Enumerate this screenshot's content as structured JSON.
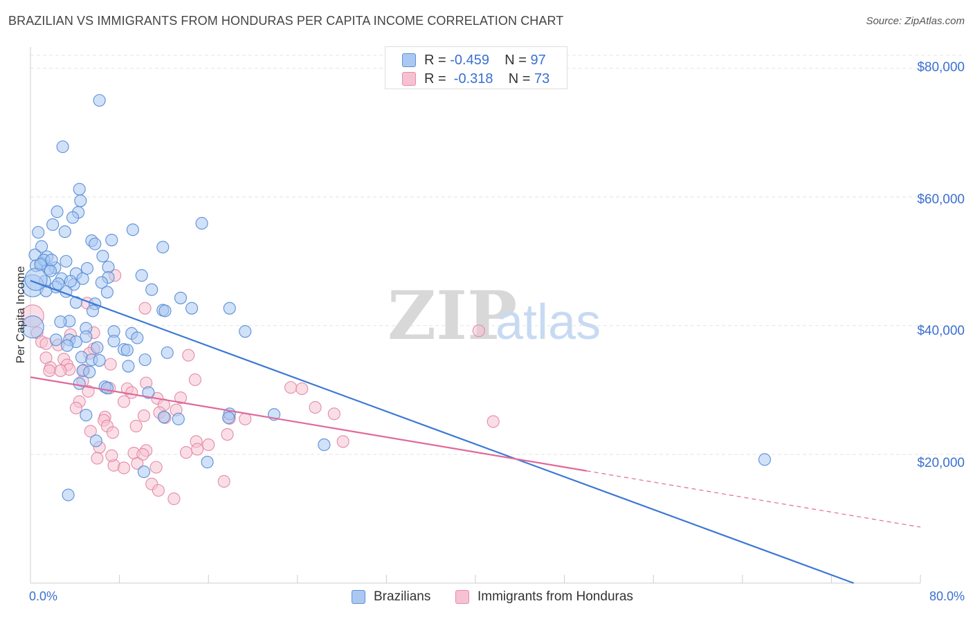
{
  "header": {
    "title": "BRAZILIAN VS IMMIGRANTS FROM HONDURAS PER CAPITA INCOME CORRELATION CHART",
    "source": "Source: ZipAtlas.com"
  },
  "watermark": {
    "zip": "ZIP",
    "atlas": "atlas"
  },
  "legend_stats": [
    {
      "r_label": "R = ",
      "r_value": "-0.459",
      "n_label": "N = ",
      "n_value": "97"
    },
    {
      "r_label": "R = ",
      "r_value": " -0.318",
      "n_label": "N = ",
      "n_value": "73"
    }
  ],
  "colors": {
    "blue_fill": "#aac8f2",
    "blue_stroke": "#5b8fd6",
    "blue_line": "#3a78d4",
    "pink_fill": "#f6c2d2",
    "pink_stroke": "#e48aa8",
    "pink_line": "#e0689a",
    "tick_text": "#3a6fd0",
    "grid": "#e4e4e4"
  },
  "chart_data": {
    "type": "scatter",
    "title": "BRAZILIAN VS IMMIGRANTS FROM HONDURAS PER CAPITA INCOME CORRELATION CHART",
    "xlabel": "",
    "ylabel": "Per Capita Income",
    "xlim": [
      0,
      80
    ],
    "ylim": [
      0,
      82000
    ],
    "x_tick_labels": [
      "0.0%",
      "80.0%"
    ],
    "y_ticks": [
      20000,
      40000,
      60000,
      80000
    ],
    "y_tick_labels": [
      "$20,000",
      "$40,000",
      "$60,000",
      "$80,000"
    ],
    "grid": true,
    "legend_position": "top-center and bottom",
    "series": [
      {
        "name": "Brazilians",
        "r": -0.459,
        "n": 97,
        "trend": {
          "x0": 0,
          "y0": 47000,
          "x1": 74,
          "y1": 0,
          "dashed_from": null
        },
        "points": [
          [
            6.2,
            75000
          ],
          [
            2.9,
            67800
          ],
          [
            4.4,
            61200
          ],
          [
            4.5,
            59400
          ],
          [
            4.3,
            57600
          ],
          [
            2.4,
            57700
          ],
          [
            3.8,
            56800
          ],
          [
            15.4,
            55900
          ],
          [
            2.0,
            55700
          ],
          [
            0.7,
            54500
          ],
          [
            3.1,
            54600
          ],
          [
            9.2,
            54900
          ],
          [
            7.3,
            53300
          ],
          [
            5.5,
            53200
          ],
          [
            5.8,
            52700
          ],
          [
            1.0,
            52300
          ],
          [
            11.9,
            52200
          ],
          [
            0.4,
            51000
          ],
          [
            1.5,
            50700
          ],
          [
            6.5,
            50800
          ],
          [
            3.2,
            50000
          ],
          [
            1.0,
            49700
          ],
          [
            0.5,
            49300
          ],
          [
            2.2,
            49000
          ],
          [
            7.0,
            49100
          ],
          [
            1.6,
            48800
          ],
          [
            1.8,
            48500
          ],
          [
            4.1,
            48100
          ],
          [
            10.0,
            47800
          ],
          [
            7.0,
            47500
          ],
          [
            2.8,
            47300
          ],
          [
            1.3,
            46900
          ],
          [
            3.9,
            46400
          ],
          [
            0.2,
            46200
          ],
          [
            2.3,
            46000
          ],
          [
            6.4,
            46700
          ],
          [
            1.4,
            45400
          ],
          [
            3.2,
            45300
          ],
          [
            10.9,
            45600
          ],
          [
            0.5,
            47200
          ],
          [
            13.5,
            44300
          ],
          [
            5.8,
            43400
          ],
          [
            4.1,
            43600
          ],
          [
            17.9,
            42700
          ],
          [
            14.5,
            42700
          ],
          [
            11.9,
            42400
          ],
          [
            12.1,
            42300
          ],
          [
            5.6,
            42300
          ],
          [
            3.5,
            40700
          ],
          [
            2.7,
            40600
          ],
          [
            5.0,
            39600
          ],
          [
            19.3,
            39100
          ],
          [
            7.5,
            39100
          ],
          [
            9.1,
            38800
          ],
          [
            5.0,
            38300
          ],
          [
            0.2,
            39800
          ],
          [
            3.5,
            37800
          ],
          [
            2.3,
            37800
          ],
          [
            4.1,
            37500
          ],
          [
            7.5,
            37600
          ],
          [
            3.3,
            36900
          ],
          [
            6.0,
            36600
          ],
          [
            8.4,
            36300
          ],
          [
            8.7,
            36200
          ],
          [
            12.3,
            35800
          ],
          [
            4.6,
            35100
          ],
          [
            5.5,
            34700
          ],
          [
            10.3,
            34700
          ],
          [
            6.2,
            34600
          ],
          [
            8.8,
            33700
          ],
          [
            4.7,
            33000
          ],
          [
            5.3,
            32800
          ],
          [
            4.4,
            31000
          ],
          [
            6.7,
            30500
          ],
          [
            6.9,
            30300
          ],
          [
            10.6,
            29600
          ],
          [
            17.9,
            26300
          ],
          [
            21.9,
            26200
          ],
          [
            5.0,
            26100
          ],
          [
            12.0,
            25800
          ],
          [
            13.3,
            25500
          ],
          [
            17.8,
            25700
          ],
          [
            5.9,
            22100
          ],
          [
            26.4,
            21500
          ],
          [
            15.9,
            18800
          ],
          [
            10.2,
            17300
          ],
          [
            3.4,
            13700
          ],
          [
            66.0,
            19200
          ],
          [
            4.7,
            47300
          ],
          [
            2.5,
            46500
          ],
          [
            1.2,
            50200
          ],
          [
            0.9,
            49500
          ],
          [
            6.9,
            45200
          ],
          [
            3.6,
            46900
          ],
          [
            9.6,
            38100
          ],
          [
            1.9,
            50200
          ],
          [
            5.1,
            48900
          ]
        ]
      },
      {
        "name": "Immigrants from Honduras",
        "r": -0.318,
        "n": 73,
        "trend": {
          "x0": 0,
          "y0": 32000,
          "x1": 80,
          "y1": 8700,
          "dashed_from": 50
        },
        "points": [
          [
            0.2,
            41500
          ],
          [
            0.6,
            38900
          ],
          [
            7.6,
            47800
          ],
          [
            10.3,
            42700
          ],
          [
            40.3,
            39200
          ],
          [
            5.1,
            43500
          ],
          [
            5.7,
            38900
          ],
          [
            3.6,
            38600
          ],
          [
            1.0,
            37500
          ],
          [
            2.5,
            37000
          ],
          [
            1.4,
            37200
          ],
          [
            5.7,
            36400
          ],
          [
            5.3,
            35700
          ],
          [
            14.2,
            35400
          ],
          [
            1.4,
            35000
          ],
          [
            3.0,
            34800
          ],
          [
            3.3,
            33900
          ],
          [
            1.8,
            33500
          ],
          [
            3.5,
            33200
          ],
          [
            4.8,
            33100
          ],
          [
            2.7,
            33000
          ],
          [
            1.7,
            33000
          ],
          [
            7.2,
            34000
          ],
          [
            14.8,
            31600
          ],
          [
            10.4,
            31100
          ],
          [
            8.7,
            30200
          ],
          [
            23.4,
            30400
          ],
          [
            24.4,
            30200
          ],
          [
            7.1,
            30300
          ],
          [
            5.2,
            29800
          ],
          [
            11.4,
            28700
          ],
          [
            8.4,
            28200
          ],
          [
            4.4,
            28200
          ],
          [
            12.0,
            27700
          ],
          [
            4.1,
            27200
          ],
          [
            25.6,
            27300
          ],
          [
            13.1,
            26900
          ],
          [
            11.6,
            26500
          ],
          [
            27.3,
            26300
          ],
          [
            10.2,
            26000
          ],
          [
            6.7,
            25800
          ],
          [
            12.1,
            25700
          ],
          [
            6.6,
            25300
          ],
          [
            17.9,
            25600
          ],
          [
            19.3,
            25500
          ],
          [
            41.6,
            25100
          ],
          [
            6.9,
            24400
          ],
          [
            9.5,
            24400
          ],
          [
            7.4,
            23400
          ],
          [
            17.7,
            23100
          ],
          [
            5.4,
            23600
          ],
          [
            14.9,
            22000
          ],
          [
            16.0,
            21500
          ],
          [
            28.1,
            22000
          ],
          [
            6.2,
            21100
          ],
          [
            10.4,
            20600
          ],
          [
            9.3,
            20200
          ],
          [
            10.1,
            20000
          ],
          [
            11.3,
            18000
          ],
          [
            7.5,
            18300
          ],
          [
            9.6,
            18600
          ],
          [
            14.0,
            20300
          ],
          [
            15.0,
            20800
          ],
          [
            8.4,
            17900
          ],
          [
            7.3,
            19800
          ],
          [
            10.9,
            15400
          ],
          [
            11.5,
            14400
          ],
          [
            12.9,
            13100
          ],
          [
            17.4,
            15800
          ],
          [
            4.7,
            31400
          ],
          [
            9.1,
            29600
          ],
          [
            13.5,
            28800
          ],
          [
            6.0,
            19400
          ]
        ]
      }
    ]
  }
}
